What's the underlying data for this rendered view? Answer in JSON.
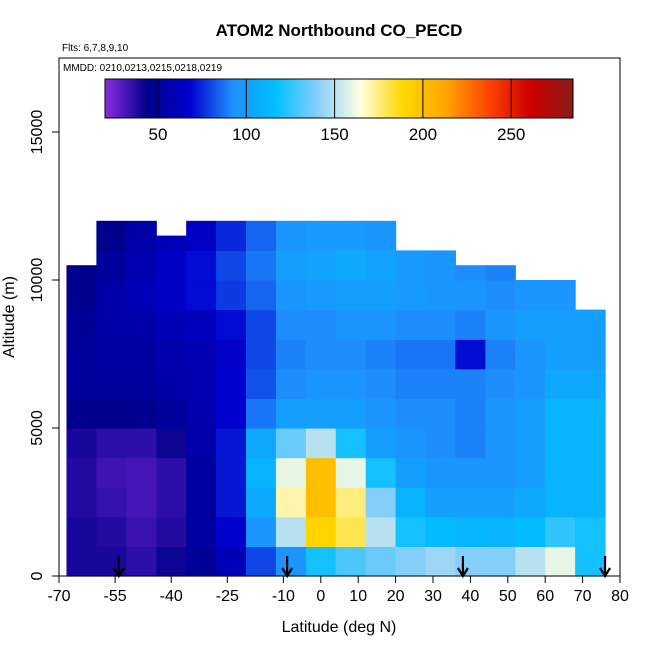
{
  "chart_data": {
    "type": "heatmap",
    "title": "ATOM2 Northbound CO_PECD",
    "flights_note": "Flts: 6,7,8,9,10",
    "dates_note": "MMDD: 0210,0213,0215,0218,0219",
    "xlabel": "Latitude (deg N)",
    "ylabel": "Altitude (m)",
    "xlim": [
      -70,
      80
    ],
    "ylim": [
      0,
      17500
    ],
    "x_ticks": [
      -70,
      -55,
      -40,
      -25,
      -10,
      0,
      10,
      20,
      30,
      40,
      50,
      60,
      70,
      80
    ],
    "x_tick_labels": [
      "-70",
      "-55",
      "-40",
      "-25",
      "-10",
      "0",
      "10",
      "20",
      "30",
      "40",
      "50",
      "60",
      "70",
      "80"
    ],
    "y_ticks": [
      0,
      5000,
      10000,
      15000
    ],
    "y_tick_labels": [
      "0",
      "5000",
      "10000",
      "15000"
    ],
    "colorbar": {
      "range": [
        20,
        285
      ],
      "ticks": [
        50,
        100,
        150,
        200,
        250
      ],
      "tick_labels": [
        "50",
        "100",
        "150",
        "200",
        "250"
      ],
      "colors": [
        "#8a2be2",
        "#00008b",
        "#0000cd",
        "#1e90ff",
        "#00bfff",
        "#87cefa",
        "#ffffe0",
        "#ffd700",
        "#ffa500",
        "#ff4500",
        "#cc0000",
        "#8b1a1a"
      ]
    },
    "arrows_latitude": [
      -54,
      -9,
      38,
      76
    ],
    "field": {
      "lat_edges": [
        -68,
        -60,
        -52,
        -44,
        -36,
        -28,
        -20,
        -12,
        -4,
        4,
        12,
        20,
        28,
        36,
        44,
        52,
        60,
        68,
        76
      ],
      "alt_edges": [
        0,
        1000,
        2000,
        3000,
        4000,
        5000,
        6000,
        7000,
        8000,
        9000,
        10000,
        11000,
        12000
      ],
      "max_alt": [
        10500,
        12000,
        12000,
        11500,
        12000,
        12000,
        12000,
        12000,
        12000,
        12000,
        12000,
        11000,
        11000,
        10500,
        10500,
        10000,
        10000,
        9000
      ],
      "values": [
        [
          40,
          40,
          36,
          42,
          48,
          60,
          80,
          95,
          120,
          130,
          135,
          140,
          145,
          140,
          140,
          150,
          160,
          120
        ],
        [
          40,
          38,
          34,
          38,
          52,
          68,
          95,
          150,
          190,
          180,
          150,
          120,
          115,
          112,
          110,
          115,
          125,
          120
        ],
        [
          38,
          35,
          32,
          36,
          52,
          72,
          105,
          170,
          200,
          175,
          140,
          110,
          100,
          100,
          100,
          105,
          110,
          110
        ],
        [
          38,
          33,
          32,
          36,
          52,
          72,
          110,
          160,
          200,
          160,
          120,
          100,
          95,
          95,
          95,
          100,
          110,
          110
        ],
        [
          40,
          36,
          36,
          42,
          55,
          72,
          105,
          135,
          150,
          120,
          100,
          95,
          92,
          90,
          95,
          100,
          110,
          110
        ],
        [
          45,
          45,
          45,
          50,
          56,
          68,
          88,
          100,
          100,
          100,
          95,
          92,
          92,
          90,
          95,
          100,
          110,
          110
        ],
        [
          50,
          50,
          50,
          55,
          58,
          68,
          82,
          92,
          95,
          95,
          92,
          90,
          90,
          90,
          92,
          95,
          105,
          105
        ],
        [
          50,
          52,
          52,
          56,
          58,
          66,
          80,
          90,
          92,
          92,
          90,
          88,
          88,
          70,
          90,
          95,
          100,
          100
        ],
        [
          48,
          55,
          55,
          60,
          62,
          70,
          80,
          92,
          92,
          95,
          95,
          92,
          92,
          90,
          95,
          100,
          100,
          100
        ],
        [
          45,
          55,
          60,
          65,
          70,
          78,
          85,
          95,
          98,
          100,
          100,
          98,
          96,
          95,
          92,
          95,
          95,
          95
        ],
        [
          45,
          50,
          58,
          65,
          70,
          80,
          88,
          100,
          102,
          105,
          102,
          98,
          95,
          92,
          90,
          80,
          80,
          80
        ],
        [
          40,
          45,
          55,
          60,
          65,
          75,
          85,
          95,
          98,
          98,
          95,
          90,
          85,
          80,
          80,
          70,
          70,
          70
        ]
      ]
    }
  }
}
